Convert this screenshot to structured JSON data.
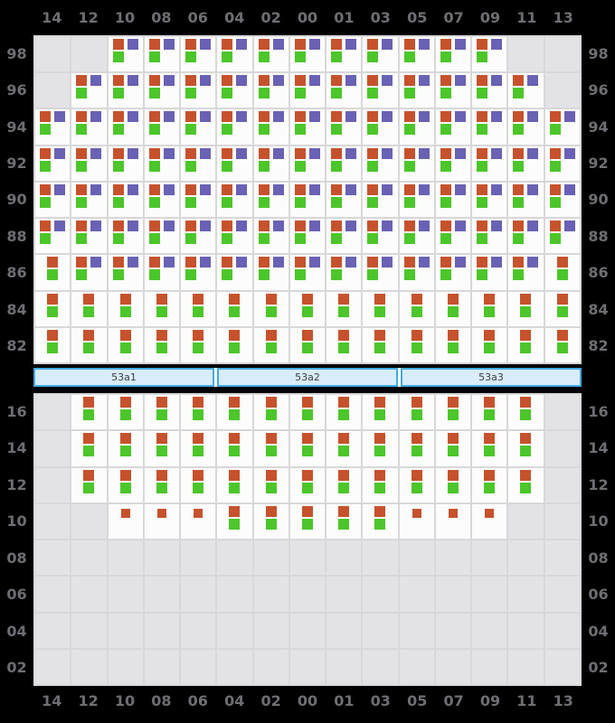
{
  "columns": [
    "14",
    "12",
    "10",
    "08",
    "06",
    "04",
    "02",
    "00",
    "01",
    "03",
    "05",
    "07",
    "09",
    "11",
    "13"
  ],
  "section_bar": {
    "segments": [
      "53a1",
      "53a2",
      "53a3"
    ]
  },
  "marker_sets": {
    "opg": [
      "orange",
      "purple",
      "green"
    ],
    "og": [
      "orange",
      "green"
    ],
    "o": [
      "orange_small"
    ]
  },
  "upper_grid": {
    "row_labels": [
      "98",
      "96",
      "94",
      "92",
      "90",
      "88",
      "86",
      "84",
      "82"
    ],
    "rows": [
      {
        "label": "98",
        "cells": [
          "",
          "",
          "opg",
          "opg",
          "opg",
          "opg",
          "opg",
          "opg",
          "opg",
          "opg",
          "opg",
          "opg",
          "opg",
          "",
          ""
        ]
      },
      {
        "label": "96",
        "cells": [
          "",
          "opg",
          "opg",
          "opg",
          "opg",
          "opg",
          "opg",
          "opg",
          "opg",
          "opg",
          "opg",
          "opg",
          "opg",
          "opg",
          ""
        ]
      },
      {
        "label": "94",
        "cells": [
          "opg",
          "opg",
          "opg",
          "opg",
          "opg",
          "opg",
          "opg",
          "opg",
          "opg",
          "opg",
          "opg",
          "opg",
          "opg",
          "opg",
          "opg"
        ]
      },
      {
        "label": "92",
        "cells": [
          "opg",
          "opg",
          "opg",
          "opg",
          "opg",
          "opg",
          "opg",
          "opg",
          "opg",
          "opg",
          "opg",
          "opg",
          "opg",
          "opg",
          "opg"
        ]
      },
      {
        "label": "90",
        "cells": [
          "opg",
          "opg",
          "opg",
          "opg",
          "opg",
          "opg",
          "opg",
          "opg",
          "opg",
          "opg",
          "opg",
          "opg",
          "opg",
          "opg",
          "opg"
        ]
      },
      {
        "label": "88",
        "cells": [
          "opg",
          "opg",
          "opg",
          "opg",
          "opg",
          "opg",
          "opg",
          "opg",
          "opg",
          "opg",
          "opg",
          "opg",
          "opg",
          "opg",
          "opg"
        ]
      },
      {
        "label": "86",
        "cells": [
          "og",
          "opg",
          "opg",
          "opg",
          "opg",
          "opg",
          "opg",
          "opg",
          "opg",
          "opg",
          "opg",
          "opg",
          "opg",
          "opg",
          "og"
        ]
      },
      {
        "label": "84",
        "cells": [
          "og",
          "og",
          "og",
          "og",
          "og",
          "og",
          "og",
          "og",
          "og",
          "og",
          "og",
          "og",
          "og",
          "og",
          "og"
        ]
      },
      {
        "label": "82",
        "cells": [
          "og",
          "og",
          "og",
          "og",
          "og",
          "og",
          "og",
          "og",
          "og",
          "og",
          "og",
          "og",
          "og",
          "og",
          "og"
        ]
      }
    ]
  },
  "lower_grid": {
    "row_labels": [
      "16",
      "14",
      "12",
      "10",
      "08",
      "06",
      "04",
      "02"
    ],
    "rows": [
      {
        "label": "16",
        "cells": [
          "",
          "og",
          "og",
          "og",
          "og",
          "og",
          "og",
          "og",
          "og",
          "og",
          "og",
          "og",
          "og",
          "og",
          ""
        ]
      },
      {
        "label": "14",
        "cells": [
          "",
          "og",
          "og",
          "og",
          "og",
          "og",
          "og",
          "og",
          "og",
          "og",
          "og",
          "og",
          "og",
          "og",
          ""
        ]
      },
      {
        "label": "12",
        "cells": [
          "",
          "og",
          "og",
          "og",
          "og",
          "og",
          "og",
          "og",
          "og",
          "og",
          "og",
          "og",
          "og",
          "og",
          ""
        ]
      },
      {
        "label": "10",
        "cells": [
          "",
          "",
          "o",
          "o",
          "o",
          "og",
          "og",
          "og",
          "og",
          "og",
          "o",
          "o",
          "o",
          "",
          ""
        ]
      },
      {
        "label": "08",
        "cells": [
          "",
          "",
          "",
          "",
          "",
          "",
          "",
          "",
          "",
          "",
          "",
          "",
          "",
          "",
          ""
        ]
      },
      {
        "label": "06",
        "cells": [
          "",
          "",
          "",
          "",
          "",
          "",
          "",
          "",
          "",
          "",
          "",
          "",
          "",
          "",
          ""
        ]
      },
      {
        "label": "04",
        "cells": [
          "",
          "",
          "",
          "",
          "",
          "",
          "",
          "",
          "",
          "",
          "",
          "",
          "",
          "",
          ""
        ]
      },
      {
        "label": "02",
        "cells": [
          "",
          "",
          "",
          "",
          "",
          "",
          "",
          "",
          "",
          "",
          "",
          "",
          "",
          "",
          ""
        ]
      }
    ]
  },
  "colors": {
    "background": "#000000",
    "gridline": "#d8d8da",
    "cell_filled": "#fcfcfc",
    "cell_empty": "#e3e3e5",
    "label_text": "#6e6e73",
    "orange": "#c6522d",
    "purple": "#6961b4",
    "green": "#4cc62a",
    "bar_fill": "#d9ecfa",
    "bar_border": "#43aae1",
    "bar_text": "#3c3c42"
  }
}
